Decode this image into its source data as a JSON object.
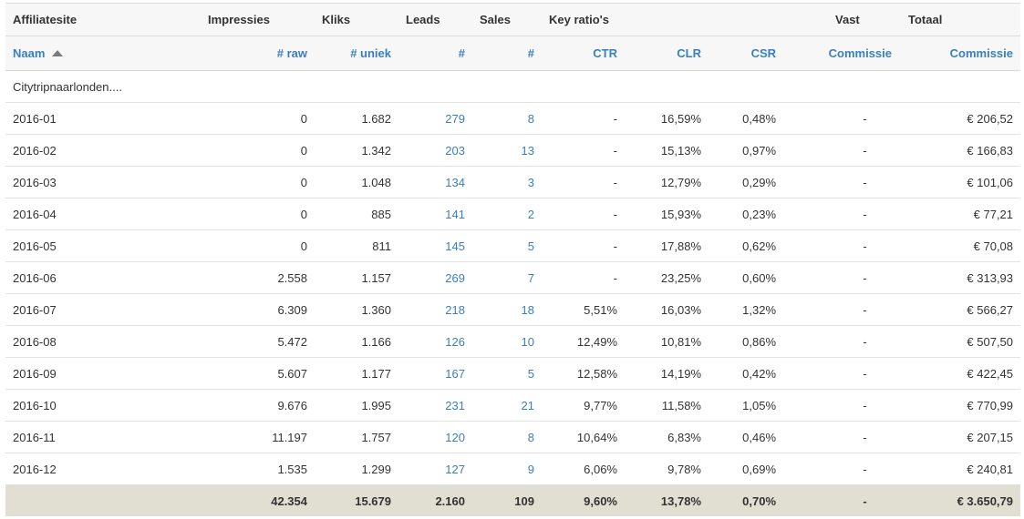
{
  "groups": {
    "affiliatesite": "Affiliatesite",
    "impressies": "Impressies",
    "kliks": "Kliks",
    "leads": "Leads",
    "sales": "Sales",
    "key_ratios": "Key ratio's",
    "vast": "Vast",
    "totaal": "Totaal"
  },
  "columns": {
    "naam": "Naam",
    "raw": "# raw",
    "uniek": "# uniek",
    "leads": "#",
    "sales": "#",
    "ctr": "CTR",
    "clr": "CLR",
    "csr": "CSR",
    "vast_commissie": "Commissie",
    "totaal_commissie": "Commissie"
  },
  "site_name": "Citytripnaarlonden....",
  "rows": [
    {
      "naam": "2016-01",
      "raw": "0",
      "uniek": "1.682",
      "leads": "279",
      "sales": "8",
      "ctr": "-",
      "clr": "16,59%",
      "csr": "0,48%",
      "vast": "-",
      "totaal": "€ 206,52"
    },
    {
      "naam": "2016-02",
      "raw": "0",
      "uniek": "1.342",
      "leads": "203",
      "sales": "13",
      "ctr": "-",
      "clr": "15,13%",
      "csr": "0,97%",
      "vast": "-",
      "totaal": "€ 166,83"
    },
    {
      "naam": "2016-03",
      "raw": "0",
      "uniek": "1.048",
      "leads": "134",
      "sales": "3",
      "ctr": "-",
      "clr": "12,79%",
      "csr": "0,29%",
      "vast": "-",
      "totaal": "€ 101,06"
    },
    {
      "naam": "2016-04",
      "raw": "0",
      "uniek": "885",
      "leads": "141",
      "sales": "2",
      "ctr": "-",
      "clr": "15,93%",
      "csr": "0,23%",
      "vast": "-",
      "totaal": "€ 77,21"
    },
    {
      "naam": "2016-05",
      "raw": "0",
      "uniek": "811",
      "leads": "145",
      "sales": "5",
      "ctr": "-",
      "clr": "17,88%",
      "csr": "0,62%",
      "vast": "-",
      "totaal": "€ 70,08"
    },
    {
      "naam": "2016-06",
      "raw": "2.558",
      "uniek": "1.157",
      "leads": "269",
      "sales": "7",
      "ctr": "-",
      "clr": "23,25%",
      "csr": "0,60%",
      "vast": "-",
      "totaal": "€ 313,93"
    },
    {
      "naam": "2016-07",
      "raw": "6.309",
      "uniek": "1.360",
      "leads": "218",
      "sales": "18",
      "ctr": "5,51%",
      "clr": "16,03%",
      "csr": "1,32%",
      "vast": "-",
      "totaal": "€ 566,27"
    },
    {
      "naam": "2016-08",
      "raw": "5.472",
      "uniek": "1.166",
      "leads": "126",
      "sales": "10",
      "ctr": "12,49%",
      "clr": "10,81%",
      "csr": "0,86%",
      "vast": "-",
      "totaal": "€ 507,50"
    },
    {
      "naam": "2016-09",
      "raw": "5.607",
      "uniek": "1.177",
      "leads": "167",
      "sales": "5",
      "ctr": "12,58%",
      "clr": "14,19%",
      "csr": "0,42%",
      "vast": "-",
      "totaal": "€ 422,45"
    },
    {
      "naam": "2016-10",
      "raw": "9.676",
      "uniek": "1.995",
      "leads": "231",
      "sales": "21",
      "ctr": "9,77%",
      "clr": "11,58%",
      "csr": "1,05%",
      "vast": "-",
      "totaal": "€ 770,99"
    },
    {
      "naam": "2016-11",
      "raw": "11.197",
      "uniek": "1.757",
      "leads": "120",
      "sales": "8",
      "ctr": "10,64%",
      "clr": "6,83%",
      "csr": "0,46%",
      "vast": "-",
      "totaal": "€ 207,15"
    },
    {
      "naam": "2016-12",
      "raw": "1.535",
      "uniek": "1.299",
      "leads": "127",
      "sales": "9",
      "ctr": "6,06%",
      "clr": "9,78%",
      "csr": "0,69%",
      "vast": "-",
      "totaal": "€ 240,81"
    }
  ],
  "totals": {
    "naam": "",
    "raw": "42.354",
    "uniek": "15.679",
    "leads": "2.160",
    "sales": "109",
    "ctr": "9,60%",
    "clr": "13,78%",
    "csr": "0,70%",
    "vast": "-",
    "totaal": "€ 3.650,79"
  },
  "colors": {
    "link": "#3a7fbf",
    "header_bg": "#f7f7f7",
    "totals_bg": "#e1dfd1"
  }
}
